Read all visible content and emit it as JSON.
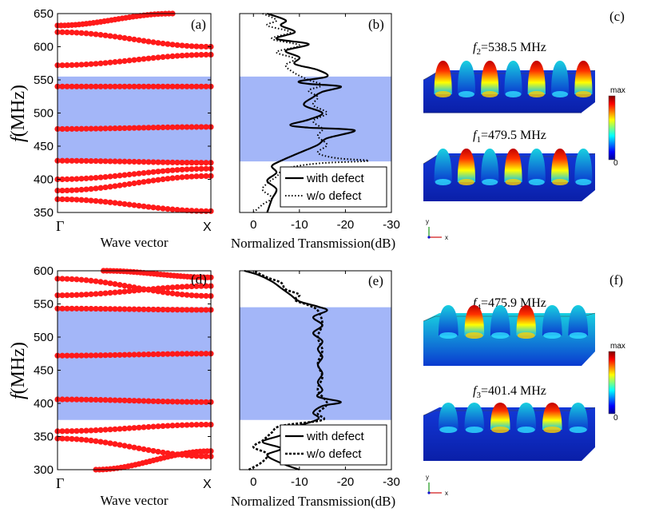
{
  "chart_data": [
    {
      "id": "a",
      "type": "scatter",
      "panel_label": "(a)",
      "xlabel": "Wave vector",
      "ylabel_main": "f",
      "ylabel_unit": "(MHz)",
      "x_ticklabels": [
        "Γ",
        "X"
      ],
      "ylim": [
        350,
        650
      ],
      "yticks": [
        350,
        400,
        450,
        500,
        550,
        600,
        650
      ],
      "bandgap": [
        427,
        555
      ],
      "bands": [
        {
          "start": 370,
          "end": 352
        },
        {
          "start": 383,
          "end": 405
        },
        {
          "start": 400,
          "end": 416
        },
        {
          "start": 428,
          "end": 425
        },
        {
          "start": 476,
          "end": 479
        },
        {
          "start": 540,
          "end": 540
        },
        {
          "start": 572,
          "end": 588
        },
        {
          "start": 622,
          "end": 600
        },
        {
          "start": 632,
          "end": 650,
          "end_x": 0.75
        }
      ],
      "colors": {
        "points": "#ff1a1a",
        "bandgap": "#a3b6f8"
      }
    },
    {
      "id": "b",
      "type": "line",
      "panel_label": "(b)",
      "xlabel": "Normalized Transmission(dB)",
      "xlim": [
        3,
        -30
      ],
      "xticks": [
        0,
        -10,
        -20,
        -30
      ],
      "x_ticklabels": [
        "0",
        "-10",
        "-20",
        "-30"
      ],
      "ylim": [
        350,
        650
      ],
      "bandgap": [
        427,
        555
      ],
      "legend_position": "bottom-right",
      "series": [
        {
          "name": "with defect",
          "style": "solid",
          "points": [
            [
              -3,
              350
            ],
            [
              -4,
              370
            ],
            [
              -5,
              385
            ],
            [
              -3,
              398
            ],
            [
              -5,
              410
            ],
            [
              -4,
              420
            ],
            [
              -6,
              428
            ],
            [
              -10,
              440
            ],
            [
              -14,
              452
            ],
            [
              -16,
              462
            ],
            [
              -22,
              474
            ],
            [
              -12,
              478
            ],
            [
              -8,
              482
            ],
            [
              -12,
              490
            ],
            [
              -15,
              500
            ],
            [
              -11,
              512
            ],
            [
              -13,
              524
            ],
            [
              -15,
              532
            ],
            [
              -19,
              540
            ],
            [
              -12,
              544
            ],
            [
              -10,
              548
            ],
            [
              -16,
              555
            ],
            [
              -14,
              565
            ],
            [
              -9,
              574
            ],
            [
              -10,
              584
            ],
            [
              -7,
              594
            ],
            [
              -12,
              604
            ],
            [
              -5,
              612
            ],
            [
              -9,
              622
            ],
            [
              -6,
              632
            ],
            [
              -7,
              640
            ],
            [
              -3,
              650
            ]
          ]
        },
        {
          "name": "w/o defect",
          "style": "dotted",
          "points": [
            [
              0,
              350
            ],
            [
              -2,
              362
            ],
            [
              -4,
              372
            ],
            [
              -2,
              384
            ],
            [
              -3,
              394
            ],
            [
              -5,
              404
            ],
            [
              -7,
              416
            ],
            [
              -14,
              424
            ],
            [
              -25,
              428
            ],
            [
              -18,
              432
            ],
            [
              -14,
              440
            ],
            [
              -16,
              452
            ],
            [
              -14,
              465
            ],
            [
              -15,
              476
            ],
            [
              -13,
              488
            ],
            [
              -16,
              500
            ],
            [
              -13,
              512
            ],
            [
              -14,
              524
            ],
            [
              -12,
              534
            ],
            [
              -15,
              542
            ],
            [
              -12,
              550
            ],
            [
              -9,
              560
            ],
            [
              -7,
              572
            ],
            [
              -9,
              582
            ],
            [
              -5,
              592
            ],
            [
              -10,
              602
            ],
            [
              -4,
              612
            ],
            [
              -8,
              622
            ],
            [
              -3,
              632
            ],
            [
              -5,
              640
            ],
            [
              -2,
              650
            ]
          ]
        }
      ]
    },
    {
      "id": "d",
      "type": "scatter",
      "panel_label": "(d)",
      "xlabel": "Wave vector",
      "ylabel_main": "f",
      "ylabel_unit": "(MHz)",
      "x_ticklabels": [
        "Γ",
        "X"
      ],
      "ylim": [
        300,
        600
      ],
      "yticks": [
        300,
        350,
        400,
        450,
        500,
        550,
        600
      ],
      "bandgap": [
        375,
        545
      ],
      "bands": [
        {
          "start": 300,
          "end": 328,
          "start_x": 0.25
        },
        {
          "start": 347,
          "end": 320
        },
        {
          "start": 358,
          "end": 368
        },
        {
          "start": 406,
          "end": 402
        },
        {
          "start": 472,
          "end": 475
        },
        {
          "start": 543,
          "end": 541
        },
        {
          "start": 563,
          "end": 577
        },
        {
          "start": 588,
          "end": 562
        },
        {
          "start": 600,
          "end": 590,
          "start_x": 0.3
        }
      ],
      "colors": {
        "points": "#ff1a1a",
        "bandgap": "#a3b6f8"
      }
    },
    {
      "id": "e",
      "type": "line",
      "panel_label": "(e)",
      "xlabel": "Normalized Transmission(dB)",
      "xlim": [
        3,
        -30
      ],
      "xticks": [
        0,
        -10,
        -20,
        -30
      ],
      "x_ticklabels": [
        "0",
        "-10",
        "-20",
        "-30"
      ],
      "ylim": [
        300,
        600
      ],
      "bandgap": [
        375,
        545
      ],
      "legend_position": "bottom-right",
      "series": [
        {
          "name": "with defect",
          "style": "solid",
          "points": [
            [
              -10,
              300
            ],
            [
              -6,
              310
            ],
            [
              -3,
              322
            ],
            [
              -6,
              332
            ],
            [
              -2,
              342
            ],
            [
              -6,
              352
            ],
            [
              -8,
              362
            ],
            [
              -14,
              376
            ],
            [
              -13,
              386
            ],
            [
              -15,
              396
            ],
            [
              -19,
              402
            ],
            [
              -14,
              410
            ],
            [
              -15,
              420
            ],
            [
              -14,
              432
            ],
            [
              -15,
              445
            ],
            [
              -14,
              458
            ],
            [
              -15,
              470
            ],
            [
              -14,
              482
            ],
            [
              -15,
              494
            ],
            [
              -13,
              506
            ],
            [
              -15,
              518
            ],
            [
              -13,
              530
            ],
            [
              -16,
              540
            ],
            [
              -14,
              546
            ],
            [
              -10,
              554
            ],
            [
              -8,
              564
            ],
            [
              -6,
              574
            ],
            [
              -4,
              584
            ],
            [
              -1,
              594
            ],
            [
              2,
              600
            ]
          ]
        },
        {
          "name": "w/o defect",
          "style": "dotted",
          "points": [
            [
              1,
              300
            ],
            [
              -2,
              312
            ],
            [
              -3,
              324
            ],
            [
              0,
              334
            ],
            [
              -2,
              344
            ],
            [
              -4,
              356
            ],
            [
              -6,
              366
            ],
            [
              -15,
              375
            ],
            [
              -14,
              385
            ],
            [
              -16,
              400
            ],
            [
              -14,
              420
            ],
            [
              -15,
              440
            ],
            [
              -14,
              460
            ],
            [
              -15,
              480
            ],
            [
              -14,
              500
            ],
            [
              -15,
              520
            ],
            [
              -14,
              540
            ],
            [
              -12,
              548
            ],
            [
              -9,
              556
            ],
            [
              -10,
              564
            ],
            [
              -7,
              572
            ],
            [
              -6,
              582
            ],
            [
              -3,
              590
            ],
            [
              0,
              600
            ]
          ]
        }
      ]
    }
  ],
  "mode_panels": [
    {
      "panel_label": "(c)",
      "modes": [
        {
          "f_sub": "2",
          "value": "=538.5 MHz"
        },
        {
          "f_sub": "1",
          "value": "=479.5 MHz"
        }
      ]
    },
    {
      "panel_label": "(f)",
      "modes": [
        {
          "f_sub": "4",
          "value": "=475.9 MHz"
        },
        {
          "f_sub": "3",
          "value": "=401.4 MHz"
        }
      ]
    }
  ],
  "colorbar": {
    "max_label": "max",
    "min_label": "0"
  },
  "axes_triad": {
    "y": "y",
    "x": "x"
  }
}
